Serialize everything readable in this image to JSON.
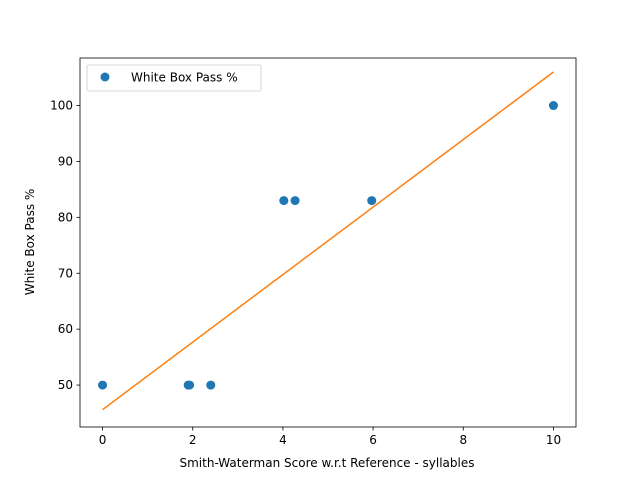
{
  "chart_data": {
    "type": "scatter",
    "xlabel": "Smith-Waterman Score w.r.t Reference - syllables",
    "ylabel": "White Box Pass %",
    "xlim": [
      -0.5,
      10.5
    ],
    "ylim": [
      42.5,
      108.5
    ],
    "x_ticks": [
      0,
      2,
      4,
      6,
      8,
      10
    ],
    "y_ticks": [
      50,
      60,
      70,
      80,
      90,
      100
    ],
    "grid": false,
    "legend_position": "top-left",
    "series": [
      {
        "name": "White Box Pass %",
        "kind": "scatter",
        "color": "#1f77b4",
        "points": [
          [
            0,
            50
          ],
          [
            1.9,
            50
          ],
          [
            1.93,
            50
          ],
          [
            2.4,
            50
          ],
          [
            4.02,
            83
          ],
          [
            4.27,
            83
          ],
          [
            5.97,
            83
          ],
          [
            10,
            100
          ]
        ]
      },
      {
        "kind": "line",
        "color": "#ff7f0e",
        "points": [
          [
            0,
            45.6
          ],
          [
            10,
            106
          ]
        ]
      }
    ]
  }
}
